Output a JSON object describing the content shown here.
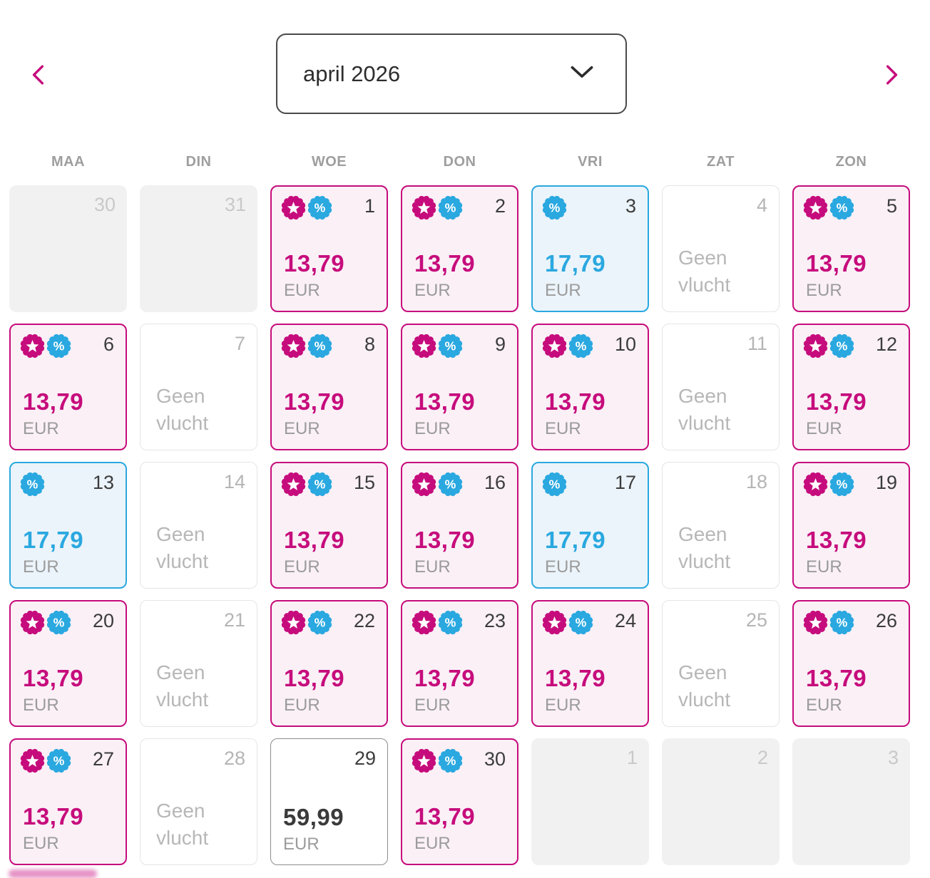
{
  "header": {
    "month_selector": {
      "value": "april 2026"
    },
    "prev_button": {
      "icon": "chevron-left"
    },
    "next_button": {
      "icon": "chevron-right"
    }
  },
  "weekdays": [
    "MAA",
    "DIN",
    "WOE",
    "DON",
    "VRI",
    "ZAT",
    "ZON"
  ],
  "calendar": {
    "currency": "EUR",
    "no_flight_text": "Geen vlucht",
    "cells": [
      {
        "day": "30",
        "type": "other_month"
      },
      {
        "day": "31",
        "type": "other_month"
      },
      {
        "day": "1",
        "type": "sale",
        "price": "13,79",
        "badges": [
          "star",
          "percent"
        ]
      },
      {
        "day": "2",
        "type": "sale",
        "price": "13,79",
        "badges": [
          "star",
          "percent"
        ]
      },
      {
        "day": "3",
        "type": "promo",
        "price": "17,79",
        "badges": [
          "percent"
        ]
      },
      {
        "day": "4",
        "type": "no_flight"
      },
      {
        "day": "5",
        "type": "sale",
        "price": "13,79",
        "badges": [
          "star",
          "percent"
        ]
      },
      {
        "day": "6",
        "type": "sale",
        "price": "13,79",
        "badges": [
          "star",
          "percent"
        ]
      },
      {
        "day": "7",
        "type": "no_flight"
      },
      {
        "day": "8",
        "type": "sale",
        "price": "13,79",
        "badges": [
          "star",
          "percent"
        ]
      },
      {
        "day": "9",
        "type": "sale",
        "price": "13,79",
        "badges": [
          "star",
          "percent"
        ]
      },
      {
        "day": "10",
        "type": "sale",
        "price": "13,79",
        "badges": [
          "star",
          "percent"
        ]
      },
      {
        "day": "11",
        "type": "no_flight"
      },
      {
        "day": "12",
        "type": "sale",
        "price": "13,79",
        "badges": [
          "star",
          "percent"
        ]
      },
      {
        "day": "13",
        "type": "promo",
        "price": "17,79",
        "badges": [
          "percent"
        ]
      },
      {
        "day": "14",
        "type": "no_flight"
      },
      {
        "day": "15",
        "type": "sale",
        "price": "13,79",
        "badges": [
          "star",
          "percent"
        ]
      },
      {
        "day": "16",
        "type": "sale",
        "price": "13,79",
        "badges": [
          "star",
          "percent"
        ]
      },
      {
        "day": "17",
        "type": "promo",
        "price": "17,79",
        "badges": [
          "percent"
        ]
      },
      {
        "day": "18",
        "type": "no_flight"
      },
      {
        "day": "19",
        "type": "sale",
        "price": "13,79",
        "badges": [
          "star",
          "percent"
        ]
      },
      {
        "day": "20",
        "type": "sale",
        "price": "13,79",
        "badges": [
          "star",
          "percent"
        ]
      },
      {
        "day": "21",
        "type": "no_flight"
      },
      {
        "day": "22",
        "type": "sale",
        "price": "13,79",
        "badges": [
          "star",
          "percent"
        ]
      },
      {
        "day": "23",
        "type": "sale",
        "price": "13,79",
        "badges": [
          "star",
          "percent"
        ]
      },
      {
        "day": "24",
        "type": "sale",
        "price": "13,79",
        "badges": [
          "star",
          "percent"
        ]
      },
      {
        "day": "25",
        "type": "no_flight"
      },
      {
        "day": "26",
        "type": "sale",
        "price": "13,79",
        "badges": [
          "star",
          "percent"
        ]
      },
      {
        "day": "27",
        "type": "sale",
        "price": "13,79",
        "badges": [
          "star",
          "percent"
        ]
      },
      {
        "day": "28",
        "type": "no_flight"
      },
      {
        "day": "29",
        "type": "regular",
        "price": "59,99"
      },
      {
        "day": "30",
        "type": "sale",
        "price": "13,79",
        "badges": [
          "star",
          "percent"
        ]
      },
      {
        "day": "1",
        "type": "other_month"
      },
      {
        "day": "2",
        "type": "other_month"
      },
      {
        "day": "3",
        "type": "other_month"
      }
    ]
  },
  "colors": {
    "magenta": "#C60C7C",
    "blue": "#2AA8E0",
    "pink_bg": "#FAF0F6",
    "blue_bg": "#EBF4FA",
    "disabled_bg": "#F1F1F1",
    "no_flight_border": "#E5E5E5",
    "regular_border": "#8D8D8D",
    "muted_text": "#9B9B9B",
    "dark_text": "#3C3C3C"
  }
}
